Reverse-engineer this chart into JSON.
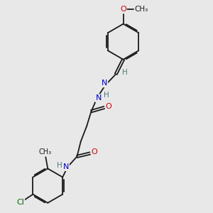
{
  "background_color": "#e8e8e8",
  "bond_color": "#1a1a1a",
  "atom_colors": {
    "O": "#cc0000",
    "N": "#0000cc",
    "Cl": "#006600",
    "C": "#1a1a1a",
    "H": "#4a7a7a"
  },
  "fig_size": [
    3.0,
    3.0
  ],
  "dpi": 100,
  "xlim": [
    0,
    10
  ],
  "ylim": [
    0,
    10
  ]
}
